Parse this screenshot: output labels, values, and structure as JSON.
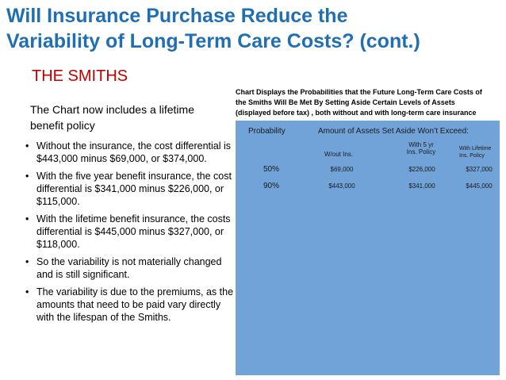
{
  "slide": {
    "title_line1": "Will Insurance Purchase Reduce the",
    "title_line2": "Variability of Long-Term Care Costs? (cont.)",
    "subtitle": "THE SMITHS",
    "lead_line1": "The Chart now includes a lifetime",
    "lead_line2": "benefit policy",
    "bullets": [
      "Without the insurance, the cost differential is $443,000 minus $69,000, or $374,000.",
      "With the five year benefit insurance, the cost differential is $341,000 minus $226,000, or $115,000.",
      "With the lifetime benefit insurance, the costs differential is $445,000 minus $327,000, or $118,000.",
      "So the variability is not materially changed and is still significant.",
      "The variability is due to the premiums, as the amounts that need to be paid vary directly with the lifespan of the Smiths."
    ]
  },
  "chart": {
    "caption_line1": "Chart Displays the Probabilities that the Future Long-Term Care Costs of",
    "caption_line2": "the Smiths Will Be Met By Setting Aside Certain Levels of Assets",
    "caption_line3": "(displayed before tax) , both without and with long-term care insurance",
    "header_probability": "Probability",
    "header_amount": "Amount of Assets Set Aside Won’t Exceed:",
    "col1_label": "W/out Ins.",
    "col2_label_line1": "With 5 yr",
    "col2_label_line2": "Ins. Policy",
    "col3_label_line1": "With Lifetime",
    "col3_label_line2": "Ins. Policy",
    "rows": [
      {
        "probability": "50%",
        "without": "$69,000",
        "five_yr": "$226,000",
        "lifetime": "$327,000"
      },
      {
        "probability": "90%",
        "without": "$443,000",
        "five_yr": "$341,000",
        "lifetime": "$445,000"
      }
    ]
  }
}
